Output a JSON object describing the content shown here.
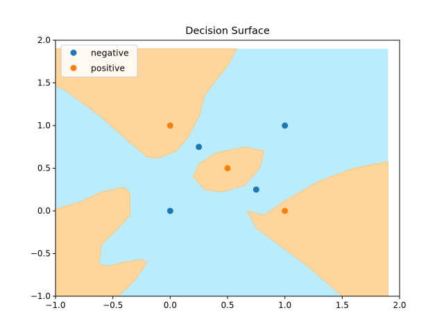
{
  "chart_data": {
    "type": "scatter",
    "title": "Decision Surface",
    "xlabel": "",
    "ylabel": "",
    "xlim": [
      -1.0,
      2.0
    ],
    "ylim": [
      -1.0,
      2.0
    ],
    "grid": false,
    "legend_position": "top-left",
    "x_ticks": [
      -1.0,
      -0.5,
      0.0,
      0.5,
      1.0,
      1.5,
      2.0
    ],
    "x_tick_labels": [
      "−1.0",
      "−0.5",
      "0.0",
      "0.5",
      "1.0",
      "1.5",
      "2.0"
    ],
    "y_ticks": [
      -1.0,
      -0.5,
      0.0,
      0.5,
      1.0,
      1.5,
      2.0
    ],
    "y_tick_labels": [
      "−1.0",
      "−0.5",
      "0.0",
      "0.5",
      "1.0",
      "1.5",
      "2.0"
    ],
    "surface": {
      "background_color": "#b9ecfc",
      "positive_region_color": "#fed59a",
      "extent_x": [
        -1.0,
        1.9
      ],
      "extent_y": [
        -1.0,
        1.9
      ],
      "regions": [
        [
          [
            -1.0,
            1.9
          ],
          [
            0.58,
            1.9
          ],
          [
            0.5,
            1.7
          ],
          [
            0.38,
            1.5
          ],
          [
            0.3,
            1.35
          ],
          [
            0.25,
            1.1
          ],
          [
            0.15,
            0.85
          ],
          [
            0.05,
            0.7
          ],
          [
            -0.1,
            0.62
          ],
          [
            -0.2,
            0.63
          ],
          [
            -0.35,
            0.8
          ],
          [
            -0.6,
            1.1
          ],
          [
            -0.9,
            1.4
          ],
          [
            -1.0,
            1.47
          ]
        ],
        [
          [
            -1.0,
            -1.0
          ],
          [
            -0.45,
            -1.0
          ],
          [
            -0.3,
            -0.8
          ],
          [
            -0.2,
            -0.6
          ],
          [
            -0.25,
            -0.57
          ],
          [
            -0.4,
            -0.6
          ],
          [
            -0.55,
            -0.65
          ],
          [
            -0.62,
            -0.62
          ],
          [
            -0.6,
            -0.4
          ],
          [
            -0.45,
            -0.2
          ],
          [
            -0.35,
            -0.05
          ],
          [
            -0.35,
            0.2
          ],
          [
            -0.4,
            0.28
          ],
          [
            -0.6,
            0.22
          ],
          [
            -0.8,
            0.1
          ],
          [
            -1.0,
            0.02
          ]
        ],
        [
          [
            0.67,
            0.0
          ],
          [
            0.82,
            -0.05
          ],
          [
            1.0,
            0.12
          ],
          [
            1.3,
            0.35
          ],
          [
            1.6,
            0.5
          ],
          [
            1.9,
            0.58
          ],
          [
            1.9,
            -1.0
          ],
          [
            1.5,
            -1.0
          ],
          [
            1.2,
            -0.65
          ],
          [
            0.95,
            -0.4
          ],
          [
            0.75,
            -0.2
          ]
        ],
        [
          [
            0.2,
            0.4
          ],
          [
            0.25,
            0.55
          ],
          [
            0.4,
            0.68
          ],
          [
            0.65,
            0.75
          ],
          [
            0.82,
            0.7
          ],
          [
            0.78,
            0.5
          ],
          [
            0.65,
            0.3
          ],
          [
            0.45,
            0.22
          ],
          [
            0.3,
            0.25
          ]
        ]
      ]
    },
    "series": [
      {
        "name": "negative",
        "color": "#1f77b4",
        "x": [
          0.0,
          0.25,
          0.75,
          1.0
        ],
        "y": [
          0.0,
          0.75,
          0.25,
          1.0
        ]
      },
      {
        "name": "positive",
        "color": "#ff7f0e",
        "x": [
          0.0,
          0.5,
          1.0
        ],
        "y": [
          1.0,
          0.5,
          0.0
        ]
      }
    ]
  }
}
